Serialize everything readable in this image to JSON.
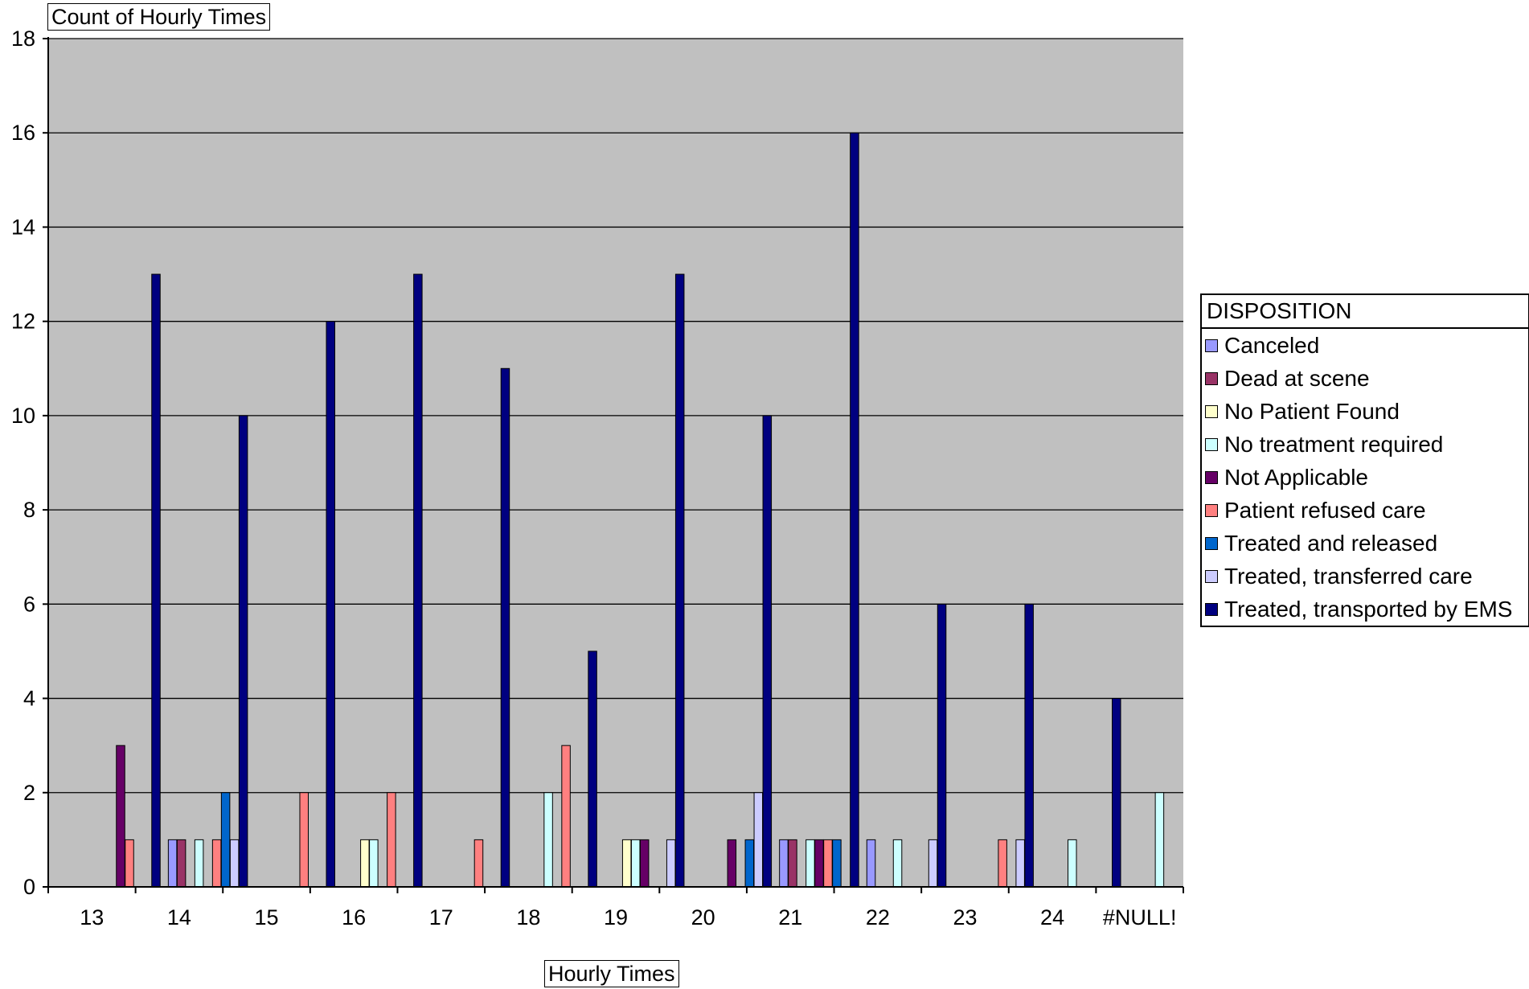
{
  "chart_data": {
    "type": "bar",
    "ylabel": "Count of Hourly Times",
    "xlabel": "Hourly Times",
    "ylim": [
      0,
      18
    ],
    "yticks": [
      0,
      2,
      4,
      6,
      8,
      10,
      12,
      14,
      16,
      18
    ],
    "grid": true,
    "legend_placement": "right",
    "legend_title": "DISPOSITION",
    "plot_background": "#c0c0c0",
    "categories": [
      "13",
      "14",
      "15",
      "16",
      "17",
      "18",
      "19",
      "20",
      "21",
      "22",
      "23",
      "24",
      "#NULL!"
    ],
    "series": [
      {
        "name": "Canceled",
        "color": "#9999ff",
        "values": [
          0,
          1,
          0,
          0,
          0,
          0,
          0,
          0,
          1,
          1,
          0,
          0,
          0
        ]
      },
      {
        "name": "Dead at scene",
        "color": "#993366",
        "values": [
          0,
          1,
          0,
          0,
          0,
          0,
          0,
          0,
          1,
          0,
          0,
          0,
          0
        ]
      },
      {
        "name": "No Patient Found",
        "color": "#ffffcc",
        "values": [
          0,
          0,
          0,
          1,
          0,
          0,
          1,
          0,
          0,
          0,
          0,
          0,
          0
        ]
      },
      {
        "name": "No treatment required",
        "color": "#ccffff",
        "values": [
          0,
          1,
          0,
          1,
          0,
          2,
          1,
          0,
          1,
          1,
          0,
          1,
          2
        ]
      },
      {
        "name": "Not Applicable",
        "color": "#660066",
        "values": [
          3,
          0,
          0,
          0,
          0,
          0,
          1,
          1,
          1,
          0,
          0,
          0,
          0
        ]
      },
      {
        "name": "Patient refused care",
        "color": "#ff8080",
        "values": [
          1,
          1,
          2,
          2,
          1,
          3,
          0,
          0,
          1,
          0,
          1,
          0,
          0
        ]
      },
      {
        "name": "Treated and released",
        "color": "#0066cc",
        "values": [
          0,
          2,
          0,
          0,
          0,
          0,
          0,
          1,
          1,
          0,
          0,
          0,
          0
        ]
      },
      {
        "name": "Treated, transferred care",
        "color": "#ccccff",
        "values": [
          0,
          1,
          0,
          0,
          0,
          0,
          1,
          2,
          0,
          1,
          1,
          0,
          0
        ]
      },
      {
        "name": "Treated, transported by EMS",
        "color": "#000080",
        "values": [
          13,
          10,
          12,
          13,
          11,
          5,
          13,
          10,
          16,
          6,
          6,
          4,
          0
        ]
      }
    ]
  }
}
